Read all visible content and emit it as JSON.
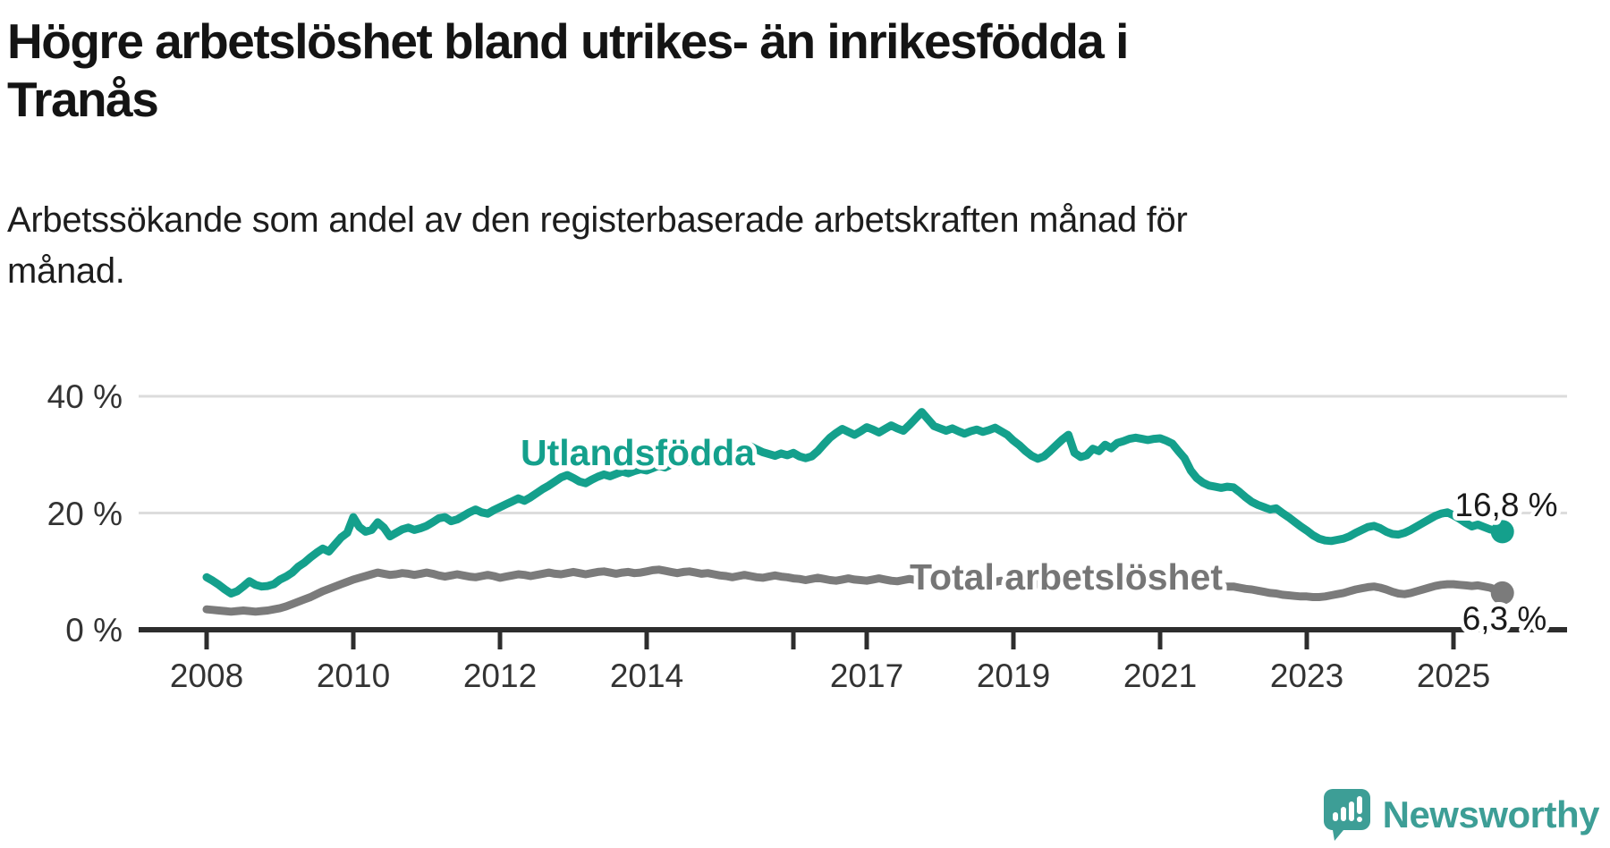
{
  "title": {
    "line1": "Högre arbetslöshet bland utrikes- än inrikesfödda i",
    "line2": "Tranås"
  },
  "subtitle": {
    "line1": "Arbetssökande som andel av den registerbaserade arbetskraften månad för",
    "line2": "månad."
  },
  "branding": {
    "name": "Newsworthy",
    "color": "#3d9e96"
  },
  "colors": {
    "utlandsfodda": "#14a08c",
    "total": "#7b7b7b",
    "axis": "#2d2d2d",
    "gridline": "#dcdcdc",
    "tick_label": "#333333",
    "value_label": "#1a1a1a"
  },
  "chart_data": {
    "type": "line",
    "unit": "%",
    "grid": true,
    "legend_position": "inline-labels-on-chart",
    "x_monthly_from": "2008-01",
    "x_monthly_to": "2025-09",
    "y_axis": {
      "tick_labels": [
        "0 %",
        "20 %",
        "40 %"
      ],
      "values": [
        0,
        20,
        40
      ],
      "range": [
        0,
        44
      ]
    },
    "x_axis": {
      "ticks": [
        {
          "year": 2008,
          "label": "2008"
        },
        {
          "year": 2010,
          "label": "2010"
        },
        {
          "year": 2012,
          "label": "2012"
        },
        {
          "year": 2014,
          "label": "2014"
        },
        {
          "year": 2016,
          "label": ""
        },
        {
          "year": 2017,
          "label": "2017"
        },
        {
          "year": 2019,
          "label": "2019"
        },
        {
          "year": 2021,
          "label": "2021"
        },
        {
          "year": 2023,
          "label": "2023"
        },
        {
          "year": 2025,
          "label": "2025"
        }
      ]
    },
    "series": [
      {
        "name": "Utlandsfödda",
        "color": "#14a08c",
        "end_label": "16,8 %",
        "end_value": 16.8,
        "values": [
          9,
          8.4,
          7.7,
          6.9,
          6.2,
          6.6,
          7.4,
          8.3,
          7.7,
          7.4,
          7.5,
          7.8,
          8.6,
          9.1,
          9.8,
          10.8,
          11.5,
          12.4,
          13.2,
          13.9,
          13.4,
          14.6,
          15.8,
          16.6,
          19.3,
          17.6,
          16.8,
          17.1,
          18.4,
          17.5,
          16,
          16.6,
          17.2,
          17.5,
          17.1,
          17.4,
          17.8,
          18.4,
          19.1,
          19.3,
          18.6,
          18.9,
          19.5,
          20.1,
          20.6,
          20.1,
          19.9,
          20.5,
          21,
          21.5,
          22,
          22.5,
          22.1,
          22.7,
          23.4,
          24.1,
          24.7,
          25.4,
          26.1,
          26.5,
          26,
          25.4,
          25.1,
          25.7,
          26.2,
          26.6,
          26.3,
          26.7,
          27.1,
          26.8,
          27.2,
          27.5,
          27.3,
          27.7,
          28.1,
          27.8,
          28.3,
          28.7,
          28.4,
          28.8,
          29.2,
          28.9,
          29.3,
          29.7,
          29.4,
          29.9,
          30.3,
          30.7,
          31,
          31.4,
          30.9,
          30.4,
          30.1,
          29.8,
          30.2,
          29.9,
          30.3,
          29.7,
          29.4,
          29.7,
          30.6,
          31.8,
          32.9,
          33.7,
          34.4,
          33.9,
          33.4,
          34,
          34.7,
          34.3,
          33.8,
          34.4,
          35,
          34.5,
          34.1,
          35.1,
          36.2,
          37.3,
          36.1,
          34.9,
          34.5,
          34.1,
          34.5,
          34,
          33.6,
          34,
          34.3,
          33.9,
          34.2,
          34.6,
          34,
          33.4,
          32.4,
          31.6,
          30.6,
          29.8,
          29.3,
          29.7,
          30.6,
          31.6,
          32.6,
          33.4,
          30.3,
          29.6,
          29.9,
          31,
          30.6,
          31.7,
          31.1,
          32,
          32.3,
          32.7,
          32.9,
          32.7,
          32.5,
          32.7,
          32.8,
          32.4,
          31.9,
          30.6,
          29.4,
          27.3,
          26,
          25.2,
          24.7,
          24.5,
          24.3,
          24.5,
          24.4,
          23.6,
          22.7,
          21.9,
          21.4,
          21,
          20.6,
          20.8,
          20,
          19.3,
          18.5,
          17.7,
          17,
          16.2,
          15.6,
          15.3,
          15.2,
          15.4,
          15.6,
          16,
          16.6,
          17.1,
          17.6,
          17.8,
          17.4,
          16.8,
          16.4,
          16.3,
          16.6,
          17.1,
          17.7,
          18.3,
          18.9,
          19.5,
          19.9,
          20.1,
          19.6,
          19,
          18.3,
          17.7,
          18,
          17.6,
          17.2,
          17,
          16.8
        ]
      },
      {
        "name": "Total arbetslöshet",
        "color": "#7b7b7b",
        "end_label": "6,3 %",
        "end_value": 6.3,
        "values": [
          3.5,
          3.4,
          3.3,
          3.2,
          3.1,
          3.2,
          3.3,
          3.2,
          3.1,
          3.2,
          3.3,
          3.5,
          3.7,
          4,
          4.4,
          4.8,
          5.2,
          5.6,
          6.1,
          6.6,
          7,
          7.4,
          7.8,
          8.2,
          8.6,
          8.9,
          9.2,
          9.5,
          9.8,
          9.6,
          9.4,
          9.5,
          9.7,
          9.6,
          9.4,
          9.6,
          9.8,
          9.6,
          9.3,
          9.1,
          9.3,
          9.5,
          9.3,
          9.1,
          9,
          9.2,
          9.4,
          9.2,
          8.9,
          9.1,
          9.3,
          9.5,
          9.4,
          9.2,
          9.4,
          9.6,
          9.8,
          9.6,
          9.5,
          9.7,
          9.9,
          9.7,
          9.5,
          9.7,
          9.9,
          10,
          9.8,
          9.6,
          9.8,
          9.9,
          9.7,
          9.8,
          10,
          10.2,
          10.3,
          10.1,
          9.9,
          9.7,
          9.9,
          10,
          9.8,
          9.6,
          9.7,
          9.5,
          9.3,
          9.2,
          9,
          9.2,
          9.4,
          9.2,
          9,
          8.9,
          9.1,
          9.3,
          9.1,
          9,
          8.8,
          8.7,
          8.5,
          8.7,
          8.9,
          8.7,
          8.5,
          8.4,
          8.6,
          8.8,
          8.6,
          8.5,
          8.4,
          8.6,
          8.8,
          8.6,
          8.4,
          8.3,
          8.5,
          8.7,
          8.5,
          8.3,
          8.2,
          8.4,
          8.6,
          8.4,
          8.2,
          8.1,
          8.3,
          8.5,
          8.3,
          8.1,
          8,
          8.2,
          8.4,
          8.2,
          8,
          7.9,
          7.7,
          7.6,
          7.8,
          8,
          7.8,
          7.7,
          7.9,
          8.1,
          8.3,
          8.5,
          8.7,
          8.9,
          9.2,
          9.5,
          9.3,
          9.1,
          8.9,
          8.8,
          9,
          9.2,
          9,
          8.9,
          9.1,
          8.9,
          8.7,
          8.5,
          8.3,
          8.1,
          7.9,
          7.7,
          7.6,
          7.4,
          7.3,
          7.4,
          7.4,
          7.2,
          7,
          6.9,
          6.7,
          6.5,
          6.3,
          6.2,
          6,
          5.9,
          5.8,
          5.7,
          5.7,
          5.6,
          5.6,
          5.7,
          5.9,
          6.1,
          6.3,
          6.6,
          6.9,
          7.1,
          7.3,
          7.4,
          7.2,
          6.9,
          6.5,
          6.2,
          6.1,
          6.3,
          6.6,
          6.9,
          7.2,
          7.5,
          7.7,
          7.8,
          7.8,
          7.7,
          7.6,
          7.5,
          7.6,
          7.4,
          7.2,
          6.8,
          6.3
        ]
      }
    ]
  }
}
